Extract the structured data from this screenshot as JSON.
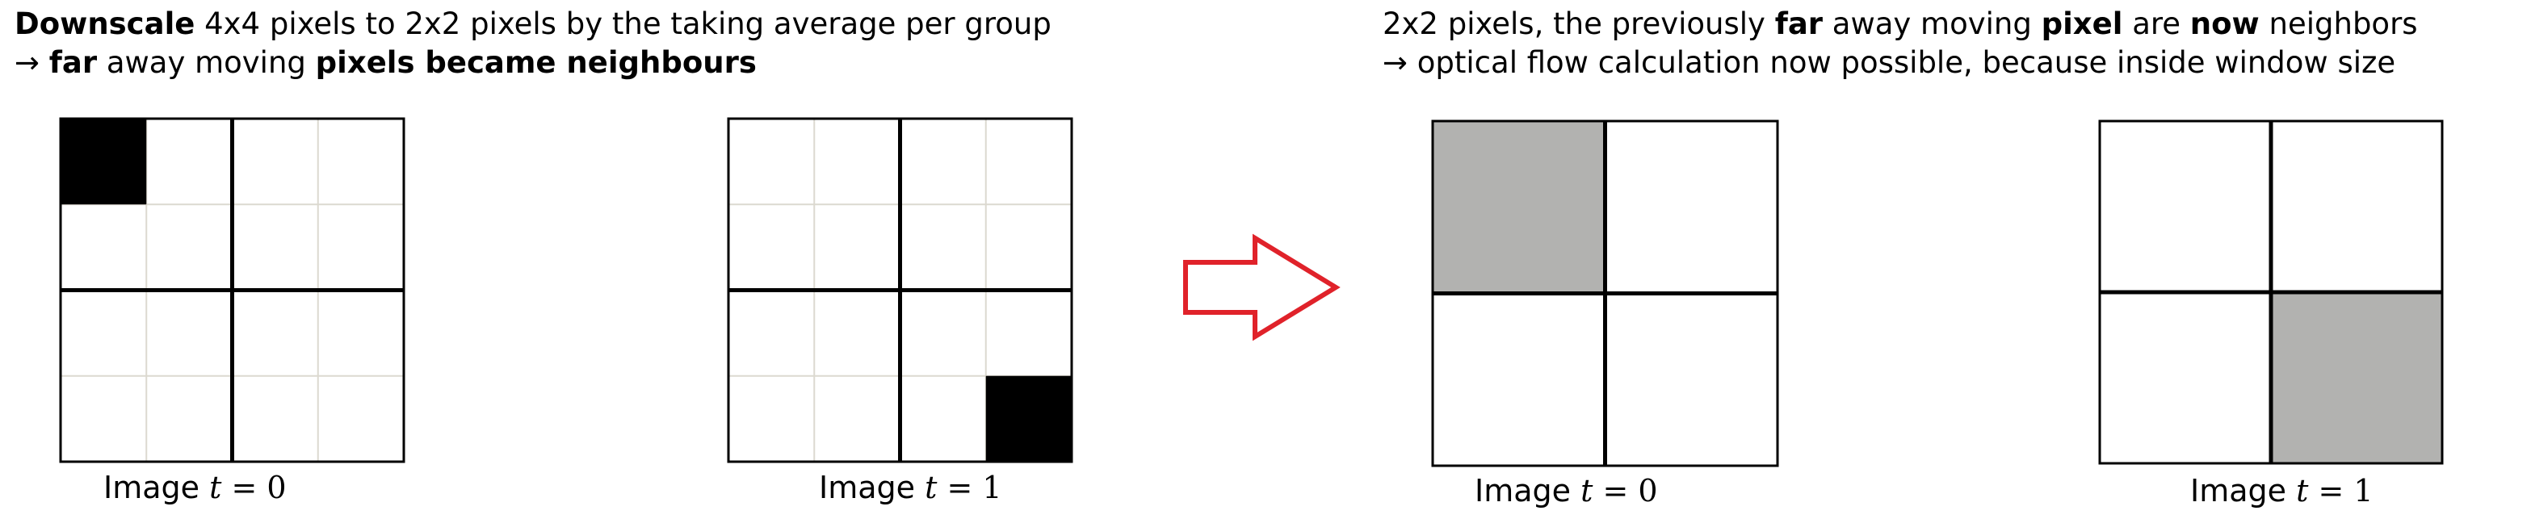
{
  "heading_left": {
    "line1": {
      "bold": "Downscale",
      "rest": " 4x4 pixels to 2x2 pixels by the taking average per group"
    },
    "line2": {
      "arrow": "→ ",
      "bold1": "far",
      "mid": " away moving ",
      "bold2": "pixels became neighbours"
    }
  },
  "heading_right": {
    "line1": {
      "t1": "2x2 pixels, the previously ",
      "b1": "far",
      "t2": " away moving ",
      "b2": "pixel",
      "t3": " are ",
      "b3": "now",
      "t4": " neighbors"
    },
    "line2": "→ optical flow calculation now possible, because inside window size"
  },
  "grids": [
    {
      "id": "grid-4x4-t0",
      "rows": 4,
      "cols": 4,
      "filled": [
        [
          0,
          0
        ]
      ],
      "fill_color": "#000000",
      "caption": {
        "word": "Image",
        "var": "t",
        "eq": " = ",
        "num": "0"
      }
    },
    {
      "id": "grid-4x4-t1",
      "rows": 4,
      "cols": 4,
      "filled": [
        [
          3,
          3
        ]
      ],
      "fill_color": "#000000",
      "caption": {
        "word": "Image",
        "var": "t",
        "eq": " = ",
        "num": "1"
      }
    },
    {
      "id": "grid-2x2-t0",
      "rows": 2,
      "cols": 2,
      "filled": [
        [
          0,
          0
        ]
      ],
      "fill_color": "#b2b2b0",
      "caption": {
        "word": "Image",
        "var": "t",
        "eq": " = ",
        "num": "0"
      }
    },
    {
      "id": "grid-2x2-t1",
      "rows": 2,
      "cols": 2,
      "filled": [
        [
          1,
          1
        ]
      ],
      "fill_color": "#b2b2b0",
      "caption": {
        "word": "Image",
        "var": "t",
        "eq": " = ",
        "num": "1"
      }
    }
  ],
  "colors": {
    "fine_grid": "#dcd9d0",
    "grid_line": "#000000",
    "arrow": "#e0222a"
  }
}
